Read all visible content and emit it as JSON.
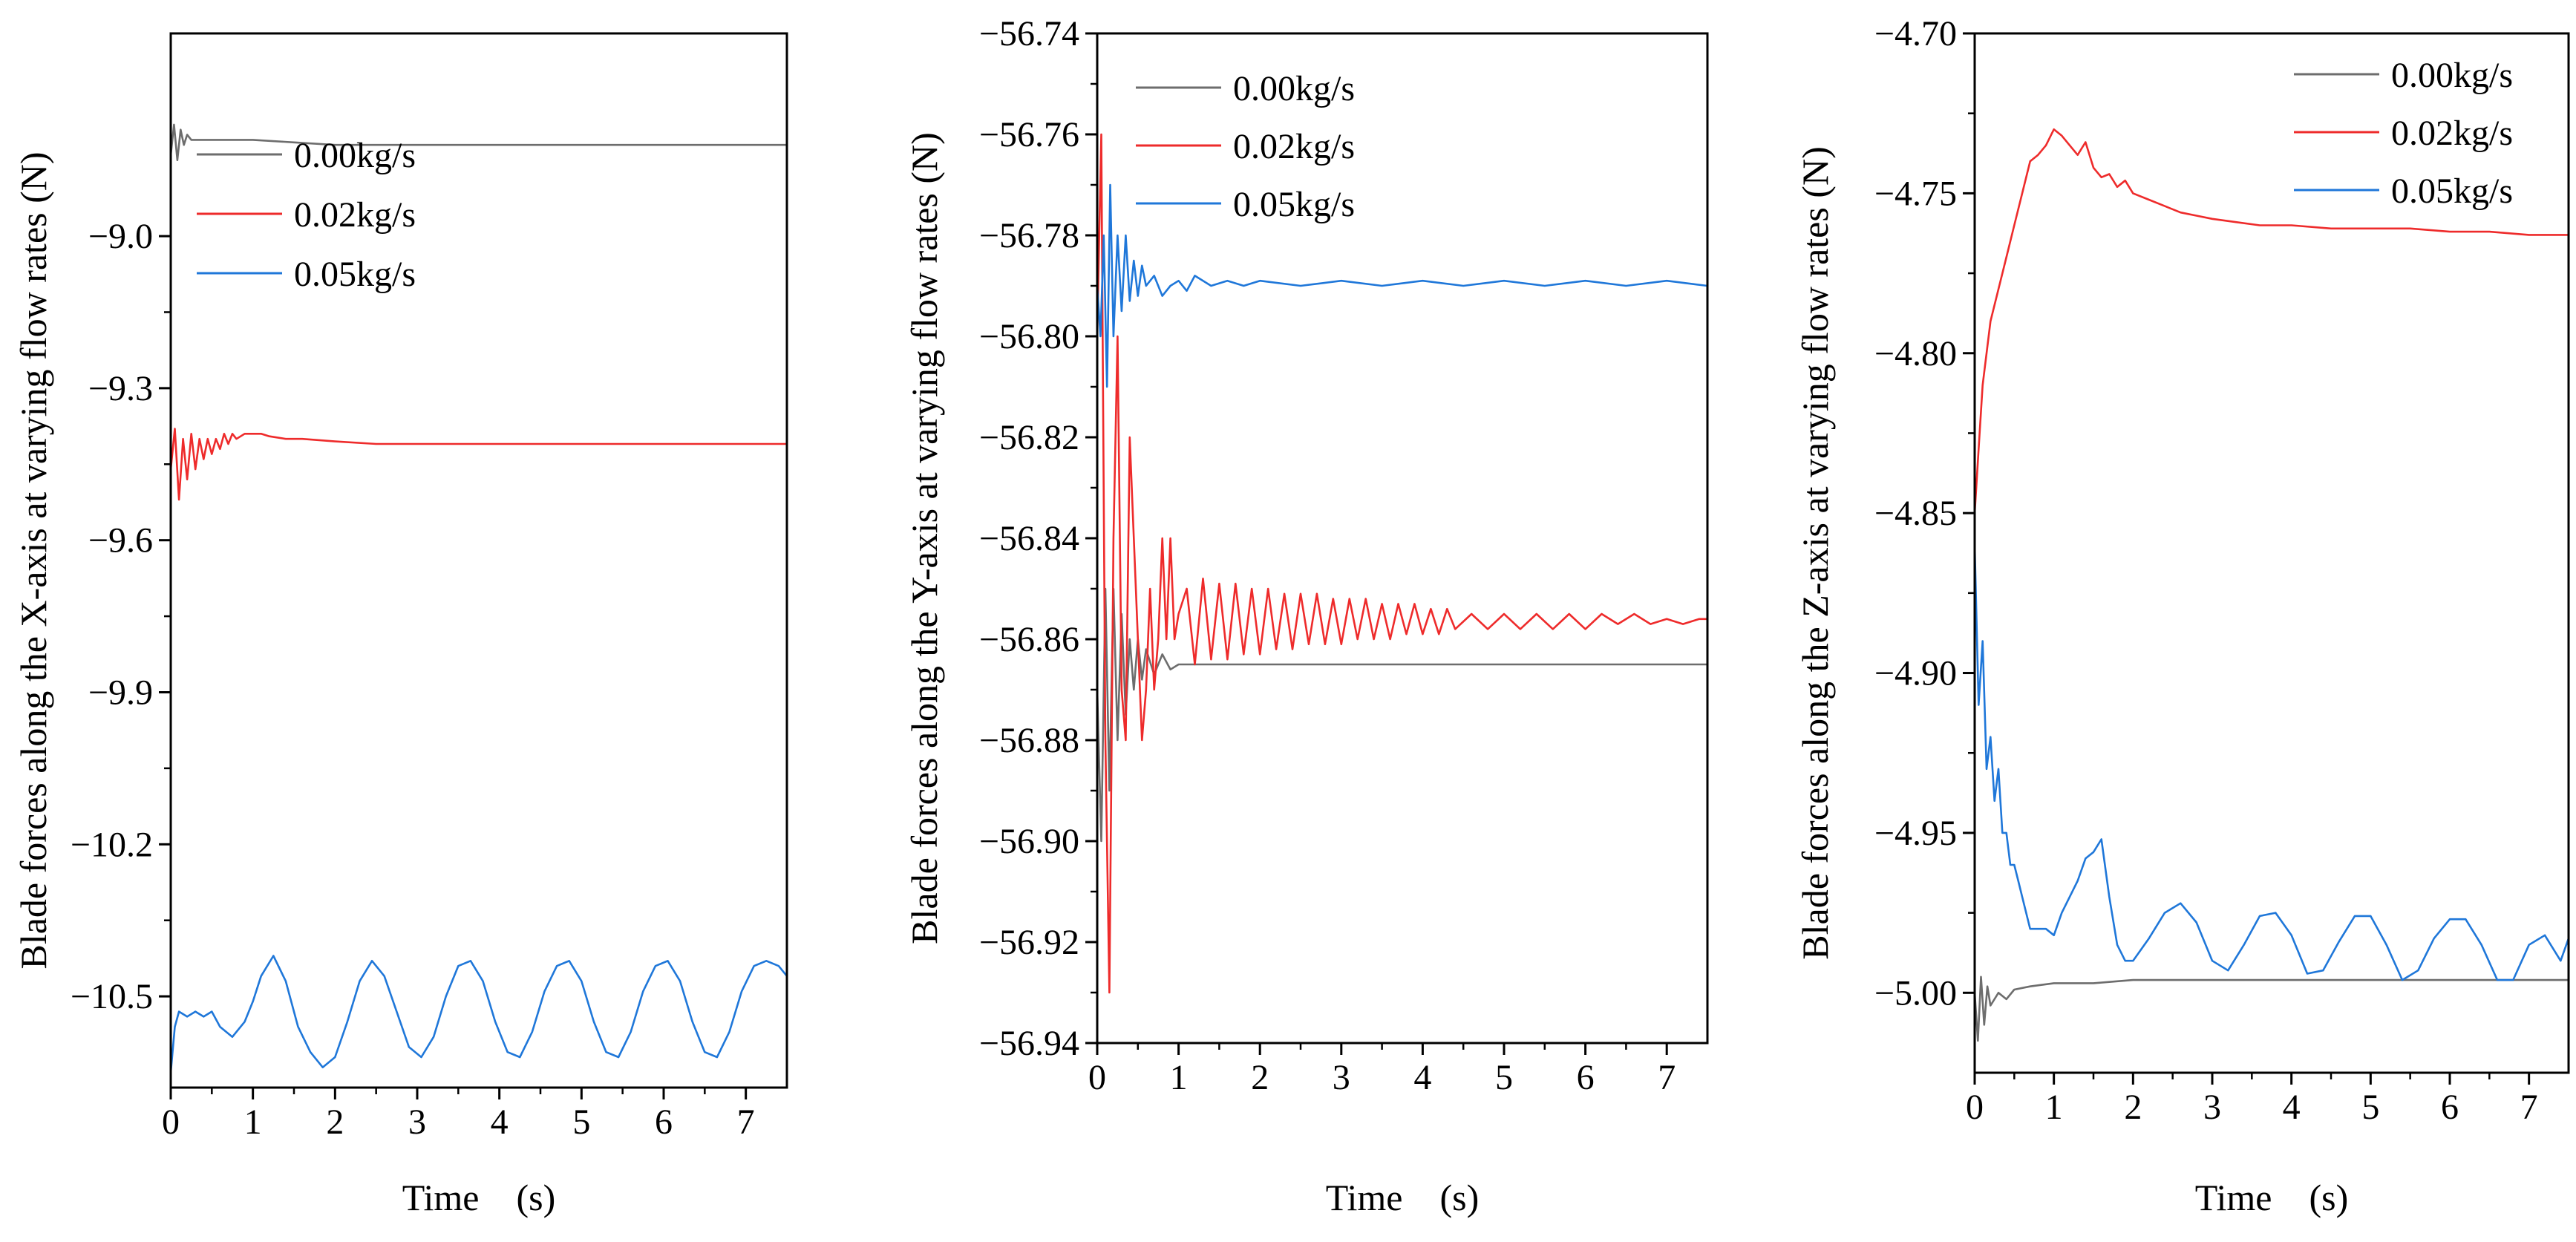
{
  "figure": {
    "description_free": true
  },
  "colors": {
    "gray": "#6d6d6d",
    "red": "#ee2b2b",
    "blue": "#1f77d9",
    "axis": "#000000"
  },
  "chart_data": [
    {
      "id": "x",
      "type": "line",
      "xlabel": "Time　(s)",
      "ylabel": "Blade forces along the X-axis at varying flow rates (N)",
      "xlim": [
        0,
        7.5
      ],
      "ylim": [
        -10.68,
        -8.6
      ],
      "xticks": [
        0,
        1,
        2,
        3,
        4,
        5,
        6,
        7
      ],
      "xtick_labels": [
        "0",
        "1",
        "2",
        "3",
        "4",
        "5",
        "6",
        "7"
      ],
      "yticks": [
        -9.0,
        -9.3,
        -9.6,
        -9.9,
        -10.2,
        -10.5
      ],
      "ytick_labels": [
        "−9.0",
        "−9.3",
        "−9.6",
        "−9.9",
        "−10.2",
        "−10.5"
      ],
      "legend_position": "top-left",
      "series": [
        {
          "name": "0.00kg/s",
          "color": "#6d6d6d",
          "x": [
            0,
            0.04,
            0.08,
            0.12,
            0.16,
            0.2,
            0.25,
            0.3,
            0.4,
            0.5,
            0.7,
            1.0,
            1.5,
            2.0,
            3.0,
            4.0,
            5.0,
            6.0,
            7.0,
            7.5
          ],
          "y": [
            -8.84,
            -8.78,
            -8.85,
            -8.79,
            -8.82,
            -8.8,
            -8.81,
            -8.81,
            -8.81,
            -8.81,
            -8.81,
            -8.81,
            -8.815,
            -8.82,
            -8.82,
            -8.82,
            -8.82,
            -8.82,
            -8.82,
            -8.82
          ]
        },
        {
          "name": "0.02kg/s",
          "color": "#ee2b2b",
          "x": [
            0,
            0.05,
            0.1,
            0.15,
            0.2,
            0.25,
            0.3,
            0.35,
            0.4,
            0.45,
            0.5,
            0.55,
            0.6,
            0.65,
            0.7,
            0.75,
            0.8,
            0.9,
            1.0,
            1.1,
            1.2,
            1.4,
            1.6,
            2.0,
            2.5,
            3.0,
            4.0,
            5.0,
            6.0,
            7.0,
            7.5
          ],
          "y": [
            -9.46,
            -9.38,
            -9.52,
            -9.4,
            -9.48,
            -9.39,
            -9.46,
            -9.4,
            -9.44,
            -9.4,
            -9.43,
            -9.4,
            -9.42,
            -9.39,
            -9.41,
            -9.39,
            -9.4,
            -9.39,
            -9.39,
            -9.39,
            -9.395,
            -9.4,
            -9.4,
            -9.405,
            -9.41,
            -9.41,
            -9.41,
            -9.41,
            -9.41,
            -9.41,
            -9.41
          ]
        },
        {
          "name": "0.05kg/s",
          "color": "#1f77d9",
          "x": [
            0,
            0.05,
            0.1,
            0.2,
            0.3,
            0.4,
            0.5,
            0.6,
            0.75,
            0.9,
            1.0,
            1.1,
            1.25,
            1.4,
            1.55,
            1.7,
            1.85,
            2.0,
            2.15,
            2.3,
            2.45,
            2.6,
            2.75,
            2.9,
            3.05,
            3.2,
            3.35,
            3.5,
            3.65,
            3.8,
            3.95,
            4.1,
            4.25,
            4.4,
            4.55,
            4.7,
            4.85,
            5.0,
            5.15,
            5.3,
            5.45,
            5.6,
            5.75,
            5.9,
            6.05,
            6.2,
            6.35,
            6.5,
            6.65,
            6.8,
            6.95,
            7.1,
            7.25,
            7.4,
            7.5
          ],
          "y": [
            -10.65,
            -10.56,
            -10.53,
            -10.54,
            -10.53,
            -10.54,
            -10.53,
            -10.56,
            -10.58,
            -10.55,
            -10.51,
            -10.46,
            -10.42,
            -10.47,
            -10.56,
            -10.61,
            -10.64,
            -10.62,
            -10.55,
            -10.47,
            -10.43,
            -10.46,
            -10.53,
            -10.6,
            -10.62,
            -10.58,
            -10.5,
            -10.44,
            -10.43,
            -10.47,
            -10.55,
            -10.61,
            -10.62,
            -10.57,
            -10.49,
            -10.44,
            -10.43,
            -10.47,
            -10.55,
            -10.61,
            -10.62,
            -10.57,
            -10.49,
            -10.44,
            -10.43,
            -10.47,
            -10.55,
            -10.61,
            -10.62,
            -10.57,
            -10.49,
            -10.44,
            -10.43,
            -10.44,
            -10.46
          ]
        }
      ]
    },
    {
      "id": "y",
      "type": "line",
      "xlabel": "Time　(s)",
      "ylabel": "Blade forces along the Y-axis at varying flow rates (N)",
      "xlim": [
        0,
        7.5
      ],
      "ylim": [
        -56.94,
        -56.74
      ],
      "xticks": [
        0,
        1,
        2,
        3,
        4,
        5,
        6,
        7
      ],
      "xtick_labels": [
        "0",
        "1",
        "2",
        "3",
        "4",
        "5",
        "6",
        "7"
      ],
      "yticks": [
        -56.74,
        -56.76,
        -56.78,
        -56.8,
        -56.82,
        -56.84,
        -56.86,
        -56.88,
        -56.9,
        -56.92,
        -56.94
      ],
      "ytick_labels": [
        "−56.74",
        "−56.76",
        "−56.78",
        "−56.80",
        "−56.82",
        "−56.84",
        "−56.86",
        "−56.88",
        "−56.90",
        "−56.92",
        "−56.94"
      ],
      "legend_position": "top-left",
      "series": [
        {
          "name": "0.00kg/s",
          "color": "#6d6d6d",
          "x": [
            0,
            0.05,
            0.1,
            0.15,
            0.2,
            0.25,
            0.3,
            0.35,
            0.4,
            0.45,
            0.5,
            0.55,
            0.6,
            0.7,
            0.8,
            0.9,
            1.0,
            1.5,
            2.0,
            3.0,
            4.0,
            5.0,
            6.0,
            7.0,
            7.5
          ],
          "y": [
            -56.87,
            -56.9,
            -56.85,
            -56.89,
            -56.85,
            -56.88,
            -56.855,
            -56.875,
            -56.86,
            -56.87,
            -56.86,
            -56.868,
            -56.862,
            -56.867,
            -56.863,
            -56.866,
            -56.865,
            -56.865,
            -56.865,
            -56.865,
            -56.865,
            -56.865,
            -56.865,
            -56.865,
            -56.865
          ]
        },
        {
          "name": "0.02kg/s",
          "color": "#ee2b2b",
          "x": [
            0,
            0.05,
            0.1,
            0.15,
            0.2,
            0.25,
            0.3,
            0.35,
            0.4,
            0.45,
            0.5,
            0.55,
            0.6,
            0.65,
            0.7,
            0.75,
            0.8,
            0.85,
            0.9,
            0.95,
            1.0,
            1.1,
            1.2,
            1.3,
            1.4,
            1.5,
            1.6,
            1.7,
            1.8,
            1.9,
            2.0,
            2.1,
            2.2,
            2.3,
            2.4,
            2.5,
            2.6,
            2.7,
            2.8,
            2.9,
            3.0,
            3.1,
            3.2,
            3.3,
            3.4,
            3.5,
            3.6,
            3.7,
            3.8,
            3.9,
            4.0,
            4.1,
            4.2,
            4.3,
            4.4,
            4.6,
            4.8,
            5.0,
            5.2,
            5.4,
            5.6,
            5.8,
            6.0,
            6.2,
            6.4,
            6.6,
            6.8,
            7.0,
            7.2,
            7.4,
            7.5
          ],
          "y": [
            -56.8,
            -56.76,
            -56.88,
            -56.93,
            -56.84,
            -56.8,
            -56.87,
            -56.88,
            -56.82,
            -56.84,
            -56.86,
            -56.88,
            -56.87,
            -56.85,
            -56.87,
            -56.86,
            -56.84,
            -56.86,
            -56.84,
            -56.86,
            -56.855,
            -56.85,
            -56.865,
            -56.848,
            -56.864,
            -56.849,
            -56.864,
            -56.849,
            -56.863,
            -56.85,
            -56.863,
            -56.85,
            -56.862,
            -56.851,
            -56.862,
            -56.851,
            -56.861,
            -56.851,
            -56.861,
            -56.852,
            -56.861,
            -56.852,
            -56.86,
            -56.852,
            -56.86,
            -56.853,
            -56.86,
            -56.853,
            -56.859,
            -56.853,
            -56.859,
            -56.854,
            -56.859,
            -56.854,
            -56.858,
            -56.855,
            -56.858,
            -56.855,
            -56.858,
            -56.855,
            -56.858,
            -56.855,
            -56.858,
            -56.855,
            -56.857,
            -56.855,
            -56.857,
            -56.856,
            -56.857,
            -56.856,
            -56.856
          ]
        },
        {
          "name": "0.05kg/s",
          "color": "#1f77d9",
          "x": [
            0,
            0.04,
            0.08,
            0.12,
            0.16,
            0.2,
            0.25,
            0.3,
            0.35,
            0.4,
            0.45,
            0.5,
            0.55,
            0.6,
            0.7,
            0.8,
            0.9,
            1.0,
            1.1,
            1.2,
            1.4,
            1.6,
            1.8,
            2.0,
            2.5,
            3.0,
            3.5,
            4.0,
            4.5,
            5.0,
            5.5,
            6.0,
            6.5,
            7.0,
            7.5
          ],
          "y": [
            -56.79,
            -56.8,
            -56.78,
            -56.81,
            -56.77,
            -56.8,
            -56.78,
            -56.795,
            -56.78,
            -56.793,
            -56.785,
            -56.792,
            -56.786,
            -56.79,
            -56.788,
            -56.792,
            -56.79,
            -56.789,
            -56.791,
            -56.788,
            -56.79,
            -56.789,
            -56.79,
            -56.789,
            -56.79,
            -56.789,
            -56.79,
            -56.789,
            -56.79,
            -56.789,
            -56.79,
            -56.789,
            -56.79,
            -56.789,
            -56.79
          ]
        }
      ]
    },
    {
      "id": "z",
      "type": "line",
      "xlabel": "Time　(s)",
      "ylabel": "Blade forces along the Z-axis at varying flow rates (N)",
      "xlim": [
        0,
        7.5
      ],
      "ylim": [
        -5.025,
        -4.7
      ],
      "xticks": [
        0,
        1,
        2,
        3,
        4,
        5,
        6,
        7
      ],
      "xtick_labels": [
        "0",
        "1",
        "2",
        "3",
        "4",
        "5",
        "6",
        "7"
      ],
      "yticks": [
        -4.7,
        -4.75,
        -4.8,
        -4.85,
        -4.9,
        -4.95,
        -5.0
      ],
      "ytick_labels": [
        "−4.70",
        "−4.75",
        "−4.80",
        "−4.85",
        "−4.90",
        "−4.95",
        "−5.00"
      ],
      "legend_position": "top-right",
      "series": [
        {
          "name": "0.00kg/s",
          "color": "#6d6d6d",
          "x": [
            0,
            0.04,
            0.08,
            0.12,
            0.16,
            0.2,
            0.3,
            0.4,
            0.5,
            0.7,
            1.0,
            1.5,
            2.0,
            3.0,
            4.0,
            5.0,
            6.0,
            7.0,
            7.5
          ],
          "y": [
            -5.0,
            -5.015,
            -4.995,
            -5.01,
            -4.998,
            -5.004,
            -5.0,
            -5.002,
            -4.999,
            -4.998,
            -4.997,
            -4.997,
            -4.996,
            -4.996,
            -4.996,
            -4.996,
            -4.996,
            -4.996,
            -4.996
          ]
        },
        {
          "name": "0.02kg/s",
          "color": "#ee2b2b",
          "x": [
            0,
            0.05,
            0.1,
            0.15,
            0.2,
            0.3,
            0.4,
            0.5,
            0.6,
            0.7,
            0.8,
            0.9,
            1.0,
            1.1,
            1.2,
            1.3,
            1.4,
            1.5,
            1.6,
            1.7,
            1.8,
            1.9,
            2.0,
            2.2,
            2.4,
            2.6,
            2.8,
            3.0,
            3.3,
            3.6,
            4.0,
            4.5,
            5.0,
            5.5,
            6.0,
            6.5,
            7.0,
            7.5
          ],
          "y": [
            -4.85,
            -4.83,
            -4.81,
            -4.8,
            -4.79,
            -4.78,
            -4.77,
            -4.76,
            -4.75,
            -4.74,
            -4.738,
            -4.735,
            -4.73,
            -4.732,
            -4.735,
            -4.738,
            -4.734,
            -4.742,
            -4.745,
            -4.744,
            -4.748,
            -4.746,
            -4.75,
            -4.752,
            -4.754,
            -4.756,
            -4.757,
            -4.758,
            -4.759,
            -4.76,
            -4.76,
            -4.761,
            -4.761,
            -4.761,
            -4.762,
            -4.762,
            -4.763,
            -4.763
          ]
        },
        {
          "name": "0.05kg/s",
          "color": "#1f77d9",
          "x": [
            0,
            0.05,
            0.1,
            0.15,
            0.2,
            0.25,
            0.3,
            0.35,
            0.4,
            0.45,
            0.5,
            0.55,
            0.6,
            0.7,
            0.8,
            0.9,
            1.0,
            1.1,
            1.2,
            1.3,
            1.4,
            1.5,
            1.6,
            1.7,
            1.8,
            1.9,
            2.0,
            2.2,
            2.4,
            2.6,
            2.8,
            3.0,
            3.2,
            3.4,
            3.6,
            3.8,
            4.0,
            4.2,
            4.4,
            4.6,
            4.8,
            5.0,
            5.2,
            5.4,
            5.6,
            5.8,
            6.0,
            6.2,
            6.4,
            6.6,
            6.8,
            7.0,
            7.2,
            7.4,
            7.5
          ],
          "y": [
            -4.86,
            -4.91,
            -4.89,
            -4.93,
            -4.92,
            -4.94,
            -4.93,
            -4.95,
            -4.95,
            -4.96,
            -4.96,
            -4.965,
            -4.97,
            -4.98,
            -4.98,
            -4.98,
            -4.982,
            -4.975,
            -4.97,
            -4.965,
            -4.958,
            -4.956,
            -4.952,
            -4.97,
            -4.985,
            -4.99,
            -4.99,
            -4.983,
            -4.975,
            -4.972,
            -4.978,
            -4.99,
            -4.993,
            -4.985,
            -4.976,
            -4.975,
            -4.982,
            -4.994,
            -4.993,
            -4.984,
            -4.976,
            -4.976,
            -4.985,
            -4.996,
            -4.993,
            -4.983,
            -4.977,
            -4.977,
            -4.985,
            -4.996,
            -4.996,
            -4.985,
            -4.982,
            -4.99,
            -4.983
          ]
        }
      ]
    }
  ]
}
